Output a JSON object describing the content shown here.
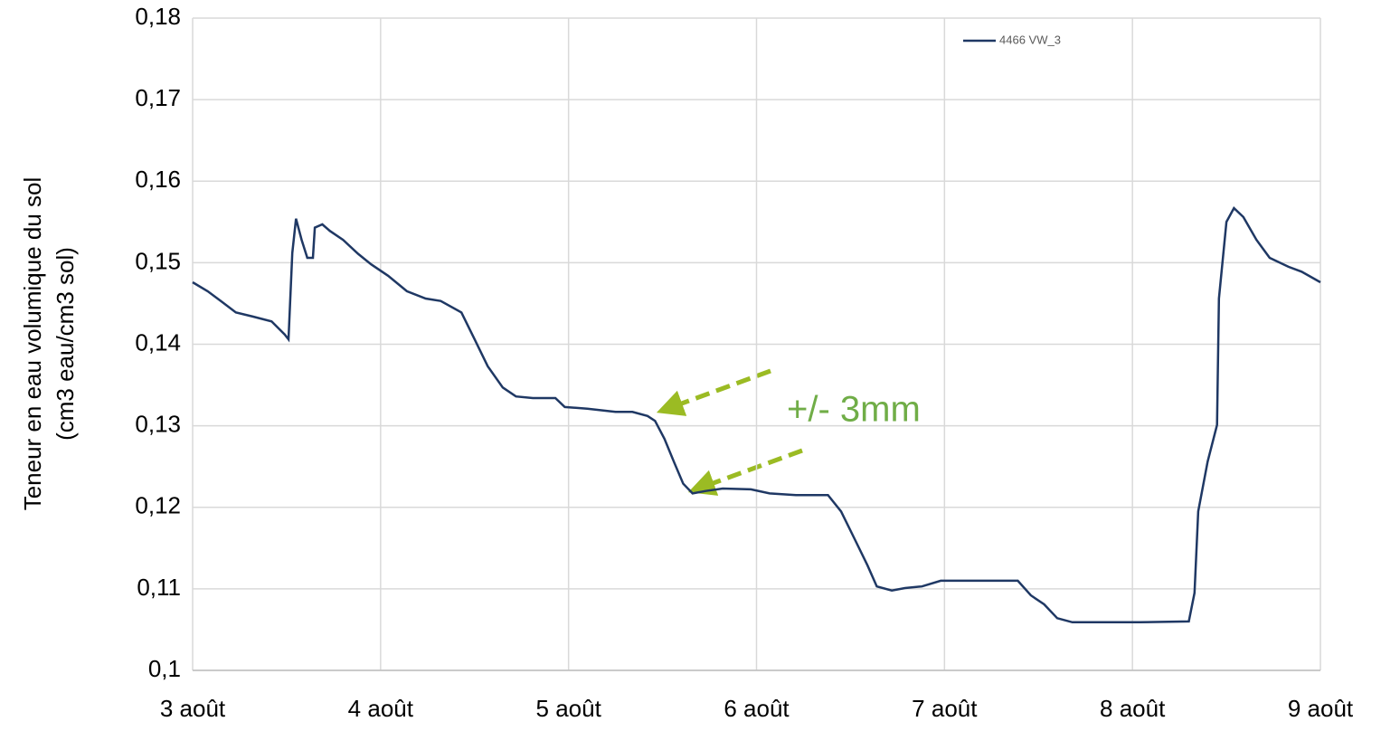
{
  "chart_data": {
    "type": "line",
    "ylabel": [
      "Teneur en eau volumique du sol",
      "(cm3 eau/cm3 sol)"
    ],
    "annotation": "+/- 3mm",
    "xlim": [
      3,
      9
    ],
    "xticks": [
      {
        "value": 3,
        "label": "3 août"
      },
      {
        "value": 4,
        "label": "4 août"
      },
      {
        "value": 5,
        "label": "5 août"
      },
      {
        "value": 6,
        "label": "6 août"
      },
      {
        "value": 7,
        "label": "7 août"
      },
      {
        "value": 8,
        "label": "8 août"
      },
      {
        "value": 9,
        "label": "9 août"
      }
    ],
    "ylim": [
      0.1,
      0.18
    ],
    "yticks": [
      {
        "value": 0.1,
        "label": "0,1"
      },
      {
        "value": 0.11,
        "label": "0,11"
      },
      {
        "value": 0.12,
        "label": "0,12"
      },
      {
        "value": 0.13,
        "label": "0,13"
      },
      {
        "value": 0.14,
        "label": "0,14"
      },
      {
        "value": 0.15,
        "label": "0,15"
      },
      {
        "value": 0.16,
        "label": "0,16"
      },
      {
        "value": 0.17,
        "label": "0,17"
      },
      {
        "value": 0.18,
        "label": "0,18"
      }
    ],
    "grid": true,
    "legend": "top-right",
    "series": [
      {
        "name": "4466 VW_3",
        "color": "#1f3864",
        "x": [
          3.0,
          3.08,
          3.15,
          3.23,
          3.32,
          3.42,
          3.49,
          3.51,
          3.53,
          3.55,
          3.58,
          3.61,
          3.64,
          3.65,
          3.69,
          3.73,
          3.8,
          3.88,
          3.95,
          4.04,
          4.14,
          4.24,
          4.32,
          4.43,
          4.5,
          4.57,
          4.65,
          4.72,
          4.81,
          4.93,
          4.98,
          5.1,
          5.25,
          5.34,
          5.42,
          5.46,
          5.51,
          5.56,
          5.61,
          5.66,
          5.73,
          5.82,
          5.97,
          6.07,
          6.21,
          6.38,
          6.45,
          6.52,
          6.59,
          6.64,
          6.72,
          6.79,
          6.88,
          6.98,
          7.12,
          7.39,
          7.46,
          7.53,
          7.6,
          7.68,
          7.85,
          8.04,
          8.3,
          8.33,
          8.35,
          8.4,
          8.45,
          8.46,
          8.5,
          8.54,
          8.59,
          8.66,
          8.73,
          8.83,
          8.9,
          9.0
        ],
        "values": [
          0.1476,
          0.1465,
          0.1453,
          0.1439,
          0.1434,
          0.1428,
          0.1412,
          0.1406,
          0.1512,
          0.1554,
          0.1528,
          0.1506,
          0.1506,
          0.1543,
          0.1547,
          0.1539,
          0.1528,
          0.1511,
          0.1498,
          0.1484,
          0.1465,
          0.1456,
          0.1453,
          0.1439,
          0.1406,
          0.1373,
          0.1347,
          0.1336,
          0.1334,
          0.1334,
          0.1323,
          0.1321,
          0.1317,
          0.1317,
          0.1312,
          0.1306,
          0.1284,
          0.1256,
          0.1229,
          0.1217,
          0.122,
          0.1223,
          0.1222,
          0.1217,
          0.1215,
          0.1215,
          0.1195,
          0.1162,
          0.1129,
          0.1103,
          0.1098,
          0.1101,
          0.1103,
          0.111,
          0.111,
          0.111,
          0.1092,
          0.1081,
          0.1064,
          0.1059,
          0.1059,
          0.1059,
          0.106,
          0.1095,
          0.1195,
          0.1256,
          0.1301,
          0.1456,
          0.155,
          0.1567,
          0.1556,
          0.1528,
          0.1506,
          0.1495,
          0.1489,
          0.1476
        ]
      }
    ]
  }
}
